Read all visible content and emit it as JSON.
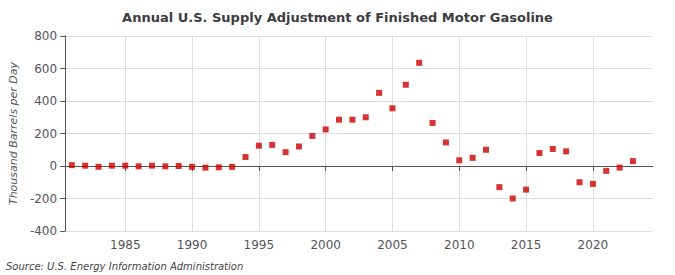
{
  "chart_data": {
    "type": "scatter",
    "title": "Annual U.S. Supply Adjustment of Finished Motor Gasoline",
    "ylabel": "Thousand Barrels per Day",
    "annotations": [
      "Source: U.S. Energy Information Administration"
    ],
    "x": [
      1981,
      1982,
      1983,
      1984,
      1985,
      1986,
      1987,
      1988,
      1989,
      1990,
      1991,
      1992,
      1993,
      1994,
      1995,
      1996,
      1997,
      1998,
      1999,
      2000,
      2001,
      2002,
      2003,
      2004,
      2005,
      2006,
      2007,
      2008,
      2009,
      2010,
      2011,
      2012,
      2013,
      2014,
      2015,
      2016,
      2017,
      2018,
      2019,
      2020,
      2021,
      2022,
      2023
    ],
    "values": [
      5,
      2,
      -5,
      2,
      2,
      -2,
      2,
      -2,
      0,
      -5,
      -10,
      -8,
      -5,
      55,
      125,
      130,
      85,
      120,
      185,
      225,
      285,
      285,
      300,
      450,
      355,
      500,
      635,
      265,
      145,
      35,
      50,
      100,
      -130,
      -200,
      -145,
      80,
      105,
      90,
      -100,
      -110,
      -30,
      -10,
      30
    ],
    "color": "#cc0000",
    "marker": "square",
    "xlim": [
      1980.5,
      2024.5
    ],
    "ylim": [
      -400,
      800
    ],
    "xticks": [
      1985,
      1990,
      1995,
      2000,
      2005,
      2010,
      2015,
      2020
    ],
    "yticks": [
      -400,
      -200,
      0,
      200,
      400,
      600,
      800
    ],
    "grid": true
  }
}
